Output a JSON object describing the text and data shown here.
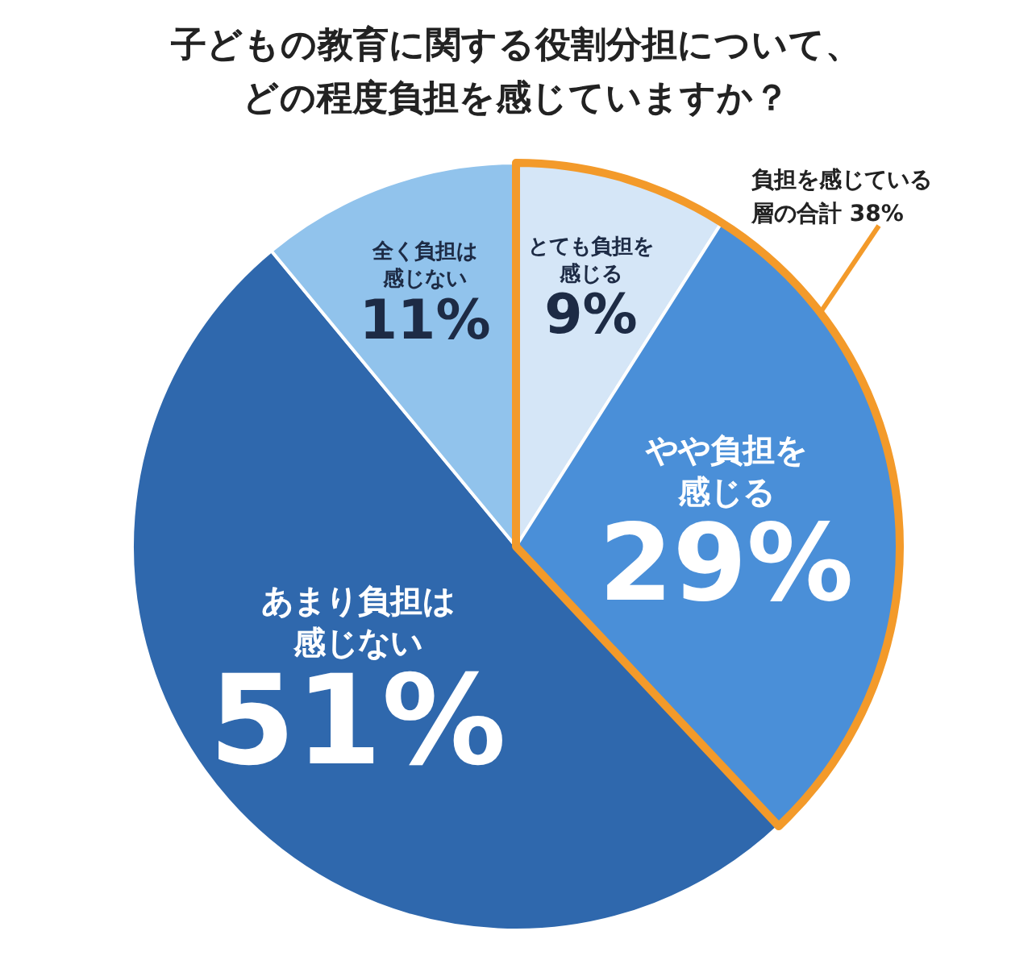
{
  "chart_data": {
    "type": "pie",
    "title": "子どもの教育に関する役割分担について、どの程度負担を感じていますか？",
    "categories": [
      "とても負担を感じる",
      "やや負担を感じる",
      "あまり負担は感じない",
      "全く負担は感じない"
    ],
    "values": [
      9,
      29,
      51,
      11
    ],
    "value_labels": [
      "9%",
      "29%",
      "51%",
      "11%"
    ],
    "colors": [
      "#d5e6f7",
      "#4a8fd8",
      "#2f68ad",
      "#91c3ec"
    ],
    "annotations": [
      "負担を感じている層の合計 38%"
    ]
  }
}
